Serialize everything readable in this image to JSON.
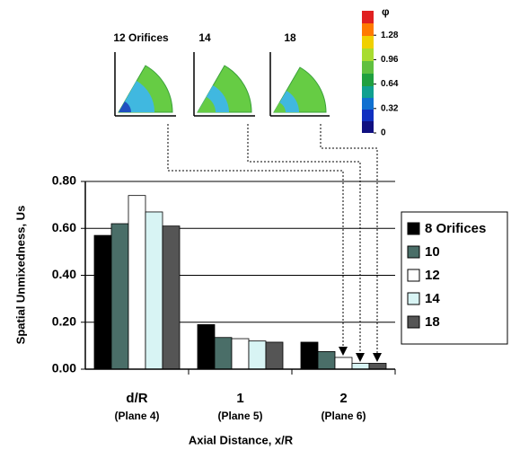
{
  "chart_data": {
    "type": "bar",
    "categories": [
      "d/R",
      "1",
      "2"
    ],
    "category_sublabels": [
      "(Plane 4)",
      "(Plane 5)",
      "(Plane 6)"
    ],
    "xlabel": "Axial Distance, x/R",
    "ylabel": "Spatial Unmixedness, Us",
    "ylim": [
      0,
      0.8
    ],
    "yticks": [
      {
        "value": 0,
        "label": "0.00"
      },
      {
        "value": 0.2,
        "label": "0.20"
      },
      {
        "value": 0.4,
        "label": "0.40"
      },
      {
        "value": 0.6,
        "label": "0.60"
      },
      {
        "value": 0.8,
        "label": "0.80"
      }
    ],
    "grid": true,
    "legend": "right",
    "series": [
      {
        "name": "8 Orifices",
        "color": "#000000",
        "values": [
          0.57,
          0.19,
          0.115
        ]
      },
      {
        "name": "10",
        "color": "#4a6e68",
        "values": [
          0.62,
          0.135,
          0.075
        ]
      },
      {
        "name": "12",
        "color": "#ffffff",
        "values": [
          0.74,
          0.13,
          0.05
        ]
      },
      {
        "name": "14",
        "color": "#d8f4f4",
        "values": [
          0.67,
          0.12,
          0.025
        ]
      },
      {
        "name": "18",
        "color": "#555555",
        "values": [
          0.61,
          0.115,
          0.025
        ]
      }
    ],
    "insets": {
      "labels": [
        "12 Orifices",
        "14",
        "18"
      ],
      "colorbar": {
        "title": "φ",
        "clim": [
          0,
          1.6
        ],
        "ticks": [
          1.28,
          0.96,
          0.64,
          0.32,
          0
        ]
      }
    }
  }
}
